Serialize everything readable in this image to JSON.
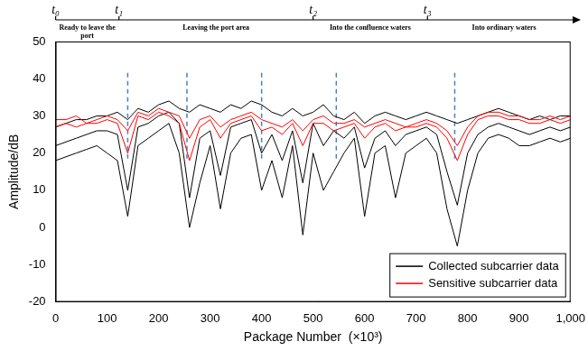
{
  "chart_data": {
    "type": "line",
    "x_label": "Package Number  (×10³)",
    "y_label": "Amplitude/dB",
    "x": [
      0,
      20,
      40,
      60,
      80,
      100,
      120,
      140,
      160,
      180,
      200,
      220,
      240,
      260,
      280,
      300,
      320,
      340,
      360,
      380,
      400,
      420,
      440,
      460,
      480,
      500,
      520,
      540,
      560,
      580,
      600,
      620,
      640,
      660,
      680,
      700,
      720,
      740,
      760,
      780,
      800,
      820,
      840,
      860,
      880,
      900,
      920,
      940,
      960,
      980,
      1000
    ],
    "series": [
      {
        "name": "Collected subcarrier data",
        "color": "#000000",
        "values": [
          27,
          28,
          29,
          29,
          30,
          30,
          31,
          29,
          32,
          31,
          33,
          34,
          32,
          31,
          33,
          32,
          31,
          33,
          32,
          34,
          33,
          31,
          30,
          32,
          30,
          31,
          33,
          30,
          29,
          31,
          28,
          30,
          31,
          30,
          29,
          30,
          31,
          30,
          29,
          28,
          29,
          30,
          31,
          32,
          31,
          30,
          29,
          30,
          29,
          30,
          30
        ]
      },
      {
        "name": "Collected subcarrier data",
        "color": "#000000",
        "values": [
          22,
          23,
          24,
          25,
          26,
          26,
          25,
          10,
          27,
          28,
          30,
          31,
          28,
          8,
          24,
          26,
          14,
          27,
          28,
          29,
          20,
          25,
          18,
          26,
          12,
          28,
          22,
          26,
          24,
          27,
          16,
          24,
          26,
          22,
          25,
          26,
          27,
          25,
          15,
          6,
          20,
          25,
          27,
          28,
          27,
          26,
          25,
          26,
          27,
          26,
          27
        ]
      },
      {
        "name": "Collected subcarrier data",
        "color": "#000000",
        "values": [
          18,
          19,
          20,
          21,
          22,
          20,
          18,
          3,
          22,
          24,
          26,
          28,
          20,
          0,
          12,
          22,
          5,
          20,
          24,
          25,
          10,
          18,
          8,
          22,
          -2,
          20,
          10,
          15,
          20,
          24,
          3,
          20,
          22,
          8,
          20,
          22,
          24,
          20,
          5,
          -5,
          10,
          20,
          24,
          25,
          24,
          22,
          22,
          23,
          24,
          23,
          24
        ]
      },
      {
        "name": "Sensitive subcarrier data",
        "color": "#ff0000",
        "values": [
          29,
          29,
          30,
          28,
          29,
          30,
          29,
          26,
          31,
          30,
          32,
          31,
          30,
          24,
          29,
          30,
          27,
          29,
          30,
          31,
          29,
          28,
          27,
          29,
          26,
          29,
          30,
          28,
          28,
          29,
          27,
          28,
          29,
          28,
          27,
          28,
          29,
          28,
          26,
          22,
          27,
          30,
          31,
          31,
          30,
          30,
          29,
          29,
          30,
          29,
          30
        ]
      },
      {
        "name": "Sensitive subcarrier data",
        "color": "#ff0000",
        "values": [
          27,
          28,
          27,
          28,
          28,
          29,
          28,
          20,
          30,
          29,
          31,
          30,
          28,
          18,
          27,
          29,
          24,
          28,
          29,
          30,
          26,
          27,
          25,
          28,
          22,
          28,
          28,
          26,
          27,
          28,
          24,
          27,
          28,
          26,
          27,
          27,
          28,
          27,
          24,
          18,
          25,
          29,
          30,
          30,
          29,
          29,
          28,
          28,
          29,
          28,
          29
        ]
      }
    ],
    "xlim": [
      0,
      1000
    ],
    "xticks": [
      0,
      100,
      200,
      300,
      400,
      500,
      600,
      700,
      800,
      900,
      1000
    ],
    "ylim": [
      -20,
      50
    ],
    "yticks": [
      -20,
      -10,
      0,
      10,
      20,
      30,
      40,
      50
    ],
    "grid": false,
    "legend": "lower right",
    "dashed_lines_x": [
      140,
      255,
      400,
      545,
      775
    ],
    "timeline": {
      "marks": [
        "t₀",
        "t₁",
        "t₂",
        "t₃"
      ],
      "positions": [
        0,
        123,
        500,
        722
      ],
      "phases": [
        "Ready to leave the port",
        "Leaving the port area",
        "Into the confluence waters",
        "Into ordinary waters"
      ]
    }
  }
}
